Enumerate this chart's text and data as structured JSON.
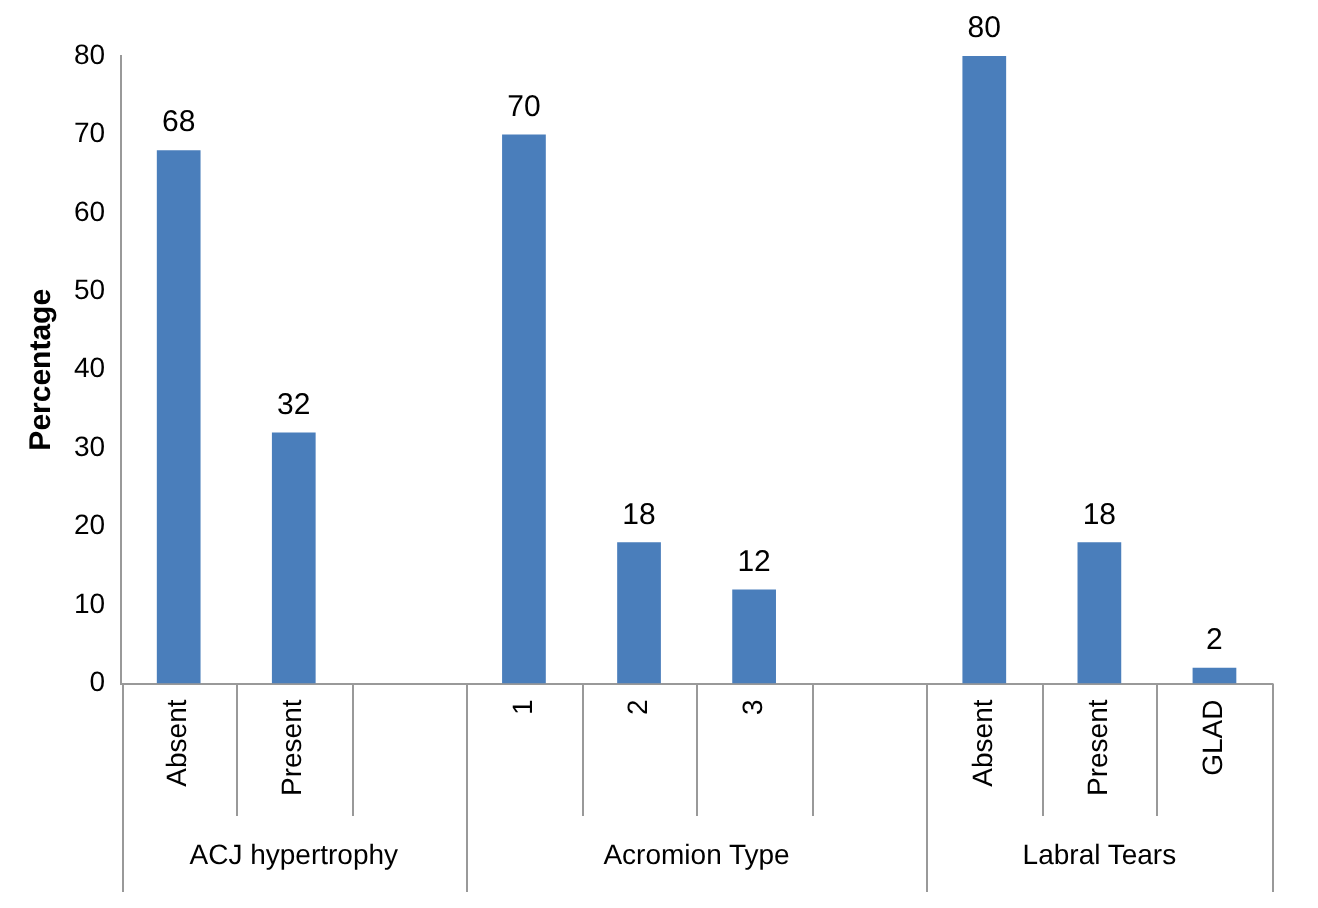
{
  "chart_data": {
    "type": "bar",
    "ylabel": "Percentage",
    "categories": [
      "Absent",
      "Present",
      null,
      "1",
      "2",
      "3",
      null,
      "Absent",
      "Present",
      "GLAD"
    ],
    "values": [
      68,
      32,
      null,
      70,
      18,
      12,
      null,
      80,
      18,
      2
    ],
    "color": "#4a7ebb",
    "ylim": [
      0,
      80
    ],
    "yticks": [
      0,
      10,
      20,
      30,
      40,
      50,
      60,
      70,
      80
    ],
    "grid": false,
    "legend": false,
    "data_labels": true,
    "annotations": [
      "ACJ hypertrophy",
      "Acromion Type",
      "Labral Tears"
    ]
  }
}
